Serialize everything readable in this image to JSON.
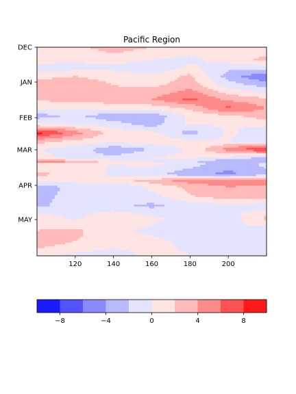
{
  "chart_data": {
    "type": "heatmap",
    "title": "Pacific Region",
    "xlabel": "",
    "ylabel": "",
    "xlim": [
      100,
      220
    ],
    "x_ticks": [
      120,
      140,
      160,
      180,
      200
    ],
    "y_ticks": [
      "DEC",
      "JAN",
      "FEB",
      "MAR",
      "APR",
      "MAY"
    ],
    "colorbar": {
      "levels": [
        -10,
        -8,
        -6,
        -4,
        -2,
        0,
        2,
        4,
        6,
        8,
        10
      ],
      "tick_values": [
        -8,
        -4,
        0,
        4,
        8
      ],
      "tick_labels": [
        "−8",
        "−4",
        "0",
        "4",
        "8"
      ],
      "colors": [
        "#1a1aff",
        "#5252ff",
        "#8a8aff",
        "#b9b9ff",
        "#e4e4ff",
        "#ffe4e4",
        "#ffb9b9",
        "#ff8a8a",
        "#ff5252",
        "#ff1a1a"
      ]
    },
    "rows": [
      {
        "at": 0.0,
        "x": [
          100,
          120,
          140,
          160,
          180,
          200,
          220
        ],
        "v": [
          0.5,
          1.5,
          3.0,
          2.0,
          1.0,
          1.5,
          0.8
        ]
      },
      {
        "at": 0.06,
        "x": [
          100,
          120,
          140,
          160,
          180,
          200,
          220
        ],
        "v": [
          1.0,
          0.5,
          1.0,
          0.0,
          -0.5,
          1.0,
          2.5
        ]
      },
      {
        "at": 0.1,
        "x": [
          100,
          120,
          140,
          160,
          180,
          200,
          220
        ],
        "v": [
          -1.0,
          -1.0,
          -0.5,
          -1.5,
          0.5,
          -1.5,
          -1.0
        ]
      },
      {
        "at": 0.14,
        "x": [
          100,
          120,
          140,
          160,
          180,
          200,
          220
        ],
        "v": [
          1.5,
          2.0,
          1.0,
          0.5,
          2.5,
          -3.0,
          -6.0
        ]
      },
      {
        "at": 0.18,
        "x": [
          100,
          120,
          140,
          160,
          180,
          200,
          220
        ],
        "v": [
          2.5,
          3.5,
          2.0,
          1.5,
          3.0,
          -1.0,
          -3.0
        ]
      },
      {
        "at": 0.25,
        "x": [
          100,
          120,
          140,
          160,
          180,
          200,
          220
        ],
        "v": [
          2.0,
          3.0,
          2.5,
          4.0,
          6.5,
          3.5,
          2.5
        ]
      },
      {
        "at": 0.29,
        "x": [
          100,
          120,
          140,
          160,
          180,
          200,
          220
        ],
        "v": [
          1.0,
          0.5,
          1.5,
          1.0,
          2.5,
          6.5,
          4.0
        ]
      },
      {
        "at": 0.33,
        "x": [
          100,
          120,
          140,
          160,
          180,
          200,
          220
        ],
        "v": [
          -3.0,
          -1.5,
          -3.5,
          -3.5,
          0.5,
          1.5,
          3.0
        ]
      },
      {
        "at": 0.37,
        "x": [
          100,
          120,
          140,
          160,
          180,
          200,
          220
        ],
        "v": [
          0.5,
          0.0,
          -1.0,
          -3.0,
          0.5,
          0.0,
          0.5
        ]
      },
      {
        "at": 0.41,
        "x": [
          100,
          120,
          140,
          160,
          180,
          200,
          220
        ],
        "v": [
          9.0,
          5.0,
          1.0,
          0.5,
          -3.0,
          0.5,
          -1.5
        ]
      },
      {
        "at": 0.45,
        "x": [
          100,
          120,
          140,
          160,
          180,
          200,
          220
        ],
        "v": [
          3.0,
          1.5,
          0.5,
          1.5,
          0.5,
          0.0,
          -1.0
        ]
      },
      {
        "at": 0.49,
        "x": [
          100,
          120,
          140,
          160,
          180,
          200,
          220
        ],
        "v": [
          0.0,
          -1.0,
          -3.5,
          -2.0,
          0.5,
          5.0,
          8.5
        ]
      },
      {
        "at": 0.53,
        "x": [
          100,
          120,
          140,
          160,
          180,
          200,
          220
        ],
        "v": [
          1.0,
          -1.0,
          -1.5,
          0.0,
          0.5,
          -1.0,
          -2.5
        ]
      },
      {
        "at": 0.56,
        "x": [
          100,
          120,
          140,
          160,
          180,
          200,
          220
        ],
        "v": [
          0.5,
          0.5,
          0.0,
          0.5,
          -1.0,
          -3.5,
          -1.5
        ]
      },
      {
        "at": 0.55,
        "x": [
          100,
          120,
          140,
          160,
          180,
          200,
          220
        ],
        "v": [
          5.5,
          3.5,
          1.0,
          0.0,
          -1.5,
          -4.0,
          -2.0
        ]
      },
      {
        "at": 0.61,
        "x": [
          100,
          120,
          140,
          160,
          180,
          200,
          220
        ],
        "v": [
          2.5,
          1.5,
          -0.5,
          -1.5,
          -3.5,
          -4.5,
          -2.5
        ]
      },
      {
        "at": 0.64,
        "x": [
          100,
          120,
          140,
          160,
          180,
          200,
          220
        ],
        "v": [
          0.5,
          0.5,
          1.0,
          3.0,
          5.0,
          6.0,
          5.0
        ]
      },
      {
        "at": 0.67,
        "x": [
          100,
          120,
          140,
          160,
          180,
          200,
          220
        ],
        "v": [
          -3.5,
          -1.0,
          -2.0,
          0.5,
          2.5,
          4.0,
          3.5
        ]
      },
      {
        "at": 0.71,
        "x": [
          100,
          120,
          140,
          160,
          180,
          200,
          220
        ],
        "v": [
          -2.5,
          -1.5,
          -1.0,
          -0.5,
          2.0,
          3.5,
          3.5
        ]
      },
      {
        "at": 0.76,
        "x": [
          100,
          120,
          140,
          160,
          180,
          200,
          220
        ],
        "v": [
          -2.5,
          -1.0,
          -1.5,
          -2.5,
          -1.0,
          -0.5,
          -1.0
        ]
      },
      {
        "at": 0.82,
        "x": [
          100,
          120,
          140,
          160,
          180,
          200,
          220
        ],
        "v": [
          1.5,
          -0.5,
          2.0,
          0.5,
          -1.0,
          -1.0,
          2.5
        ]
      },
      {
        "at": 0.88,
        "x": [
          100,
          120,
          140,
          160,
          180,
          200,
          220
        ],
        "v": [
          2.0,
          2.5,
          0.5,
          -0.5,
          -1.5,
          0.0,
          -1.5
        ]
      },
      {
        "at": 0.93,
        "x": [
          100,
          120,
          140,
          160,
          180,
          200,
          220
        ],
        "v": [
          3.5,
          2.0,
          1.0,
          0.5,
          -0.5,
          -0.5,
          -2.0
        ]
      },
      {
        "at": 1.0,
        "x": [
          100,
          120,
          140,
          160,
          180,
          200,
          220
        ],
        "v": [
          0.5,
          -0.5,
          -1.0,
          0.5,
          0.0,
          -1.0,
          -1.5
        ]
      }
    ]
  }
}
